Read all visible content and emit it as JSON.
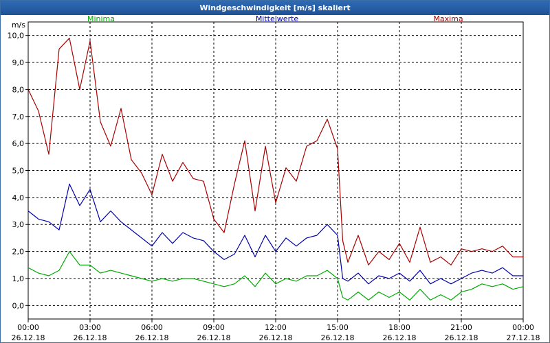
{
  "window": {
    "title": "Windgeschwindigkeit [m/s] skaliert"
  },
  "colors": {
    "minima": "#00aa00",
    "mittelwerte": "#0000aa",
    "maxima": "#aa0000",
    "grid": "#000000"
  },
  "chart_data": {
    "type": "line",
    "title": "Windgeschwindigkeit [m/s] skaliert",
    "ylabel": "m/s",
    "xlabel": "",
    "ylim": [
      -0.5,
      10.5
    ],
    "xlim_hours": [
      0,
      24
    ],
    "y_ticks": [
      "0,0",
      "1,0",
      "2,0",
      "3,0",
      "4,0",
      "5,0",
      "6,0",
      "7,0",
      "8,0",
      "9,0",
      "10,0"
    ],
    "x_ticks": [
      {
        "time": "00:00",
        "date": "26.12.18"
      },
      {
        "time": "03:00",
        "date": "26.12.18"
      },
      {
        "time": "06:00",
        "date": "26.12.18"
      },
      {
        "time": "09:00",
        "date": "26.12.18"
      },
      {
        "time": "12:00",
        "date": "26.12.18"
      },
      {
        "time": "15:00",
        "date": "26.12.18"
      },
      {
        "time": "18:00",
        "date": "26.12.18"
      },
      {
        "time": "21:00",
        "date": "26.12.18"
      },
      {
        "time": "00:00",
        "date": "27.12.18"
      }
    ],
    "legend": [
      "Minima",
      "Mittelwerte",
      "Maxima"
    ],
    "series": [
      {
        "name": "Maxima",
        "x_hours": [
          0,
          0.5,
          1,
          1.5,
          2,
          2.5,
          3,
          3.5,
          4,
          4.5,
          5,
          5.5,
          6,
          6.5,
          7,
          7.5,
          8,
          8.5,
          9,
          9.5,
          10,
          10.5,
          11,
          11.5,
          12,
          12.5,
          13,
          13.5,
          14,
          14.5,
          15,
          15.25,
          15.5,
          16,
          16.5,
          17,
          17.5,
          18,
          18.5,
          19,
          19.5,
          20,
          20.5,
          21,
          21.5,
          22,
          22.5,
          23,
          23.5,
          24
        ],
        "values": [
          8.0,
          7.2,
          5.6,
          9.5,
          9.9,
          8.0,
          9.8,
          6.8,
          5.9,
          7.3,
          5.4,
          4.9,
          4.1,
          5.6,
          4.6,
          5.3,
          4.7,
          4.6,
          3.2,
          2.7,
          4.5,
          6.1,
          3.5,
          5.9,
          3.8,
          5.1,
          4.6,
          5.9,
          6.1,
          6.9,
          5.8,
          2.4,
          1.6,
          2.6,
          1.5,
          2.0,
          1.7,
          2.3,
          1.6,
          2.9,
          1.6,
          1.8,
          1.5,
          2.1,
          2.0,
          2.1,
          2.0,
          2.2,
          1.8,
          1.8
        ]
      },
      {
        "name": "Mittelwerte",
        "x_hours": [
          0,
          0.5,
          1,
          1.5,
          2,
          2.5,
          3,
          3.5,
          4,
          4.5,
          5,
          5.5,
          6,
          6.5,
          7,
          7.5,
          8,
          8.5,
          9,
          9.5,
          10,
          10.5,
          11,
          11.5,
          12,
          12.5,
          13,
          13.5,
          14,
          14.5,
          15,
          15.25,
          15.5,
          16,
          16.5,
          17,
          17.5,
          18,
          18.5,
          19,
          19.5,
          20,
          20.5,
          21,
          21.5,
          22,
          22.5,
          23,
          23.5,
          24
        ],
        "values": [
          3.5,
          3.2,
          3.1,
          2.8,
          4.5,
          3.7,
          4.3,
          3.1,
          3.5,
          3.1,
          2.8,
          2.5,
          2.2,
          2.7,
          2.3,
          2.7,
          2.5,
          2.4,
          2.0,
          1.7,
          1.9,
          2.6,
          1.8,
          2.6,
          2.0,
          2.5,
          2.2,
          2.5,
          2.6,
          3.0,
          2.6,
          1.0,
          0.9,
          1.2,
          0.8,
          1.1,
          1.0,
          1.2,
          0.9,
          1.3,
          0.8,
          1.0,
          0.8,
          1.0,
          1.2,
          1.3,
          1.2,
          1.4,
          1.1,
          1.1
        ]
      },
      {
        "name": "Minima",
        "x_hours": [
          0,
          0.5,
          1,
          1.5,
          2,
          2.5,
          3,
          3.5,
          4,
          4.5,
          5,
          5.5,
          6,
          6.5,
          7,
          7.5,
          8,
          8.5,
          9,
          9.5,
          10,
          10.5,
          11,
          11.5,
          12,
          12.5,
          13,
          13.5,
          14,
          14.5,
          15,
          15.25,
          15.5,
          16,
          16.5,
          17,
          17.5,
          18,
          18.5,
          19,
          19.5,
          20,
          20.5,
          21,
          21.5,
          22,
          22.5,
          23,
          23.5,
          24
        ],
        "values": [
          1.4,
          1.2,
          1.1,
          1.3,
          2.0,
          1.5,
          1.5,
          1.2,
          1.3,
          1.2,
          1.1,
          1.0,
          0.9,
          1.0,
          0.9,
          1.0,
          1.0,
          0.9,
          0.8,
          0.7,
          0.8,
          1.1,
          0.7,
          1.2,
          0.8,
          1.0,
          0.9,
          1.1,
          1.1,
          1.3,
          1.0,
          0.3,
          0.2,
          0.5,
          0.2,
          0.5,
          0.3,
          0.5,
          0.2,
          0.6,
          0.2,
          0.4,
          0.2,
          0.5,
          0.6,
          0.8,
          0.7,
          0.8,
          0.6,
          0.7
        ]
      }
    ]
  }
}
